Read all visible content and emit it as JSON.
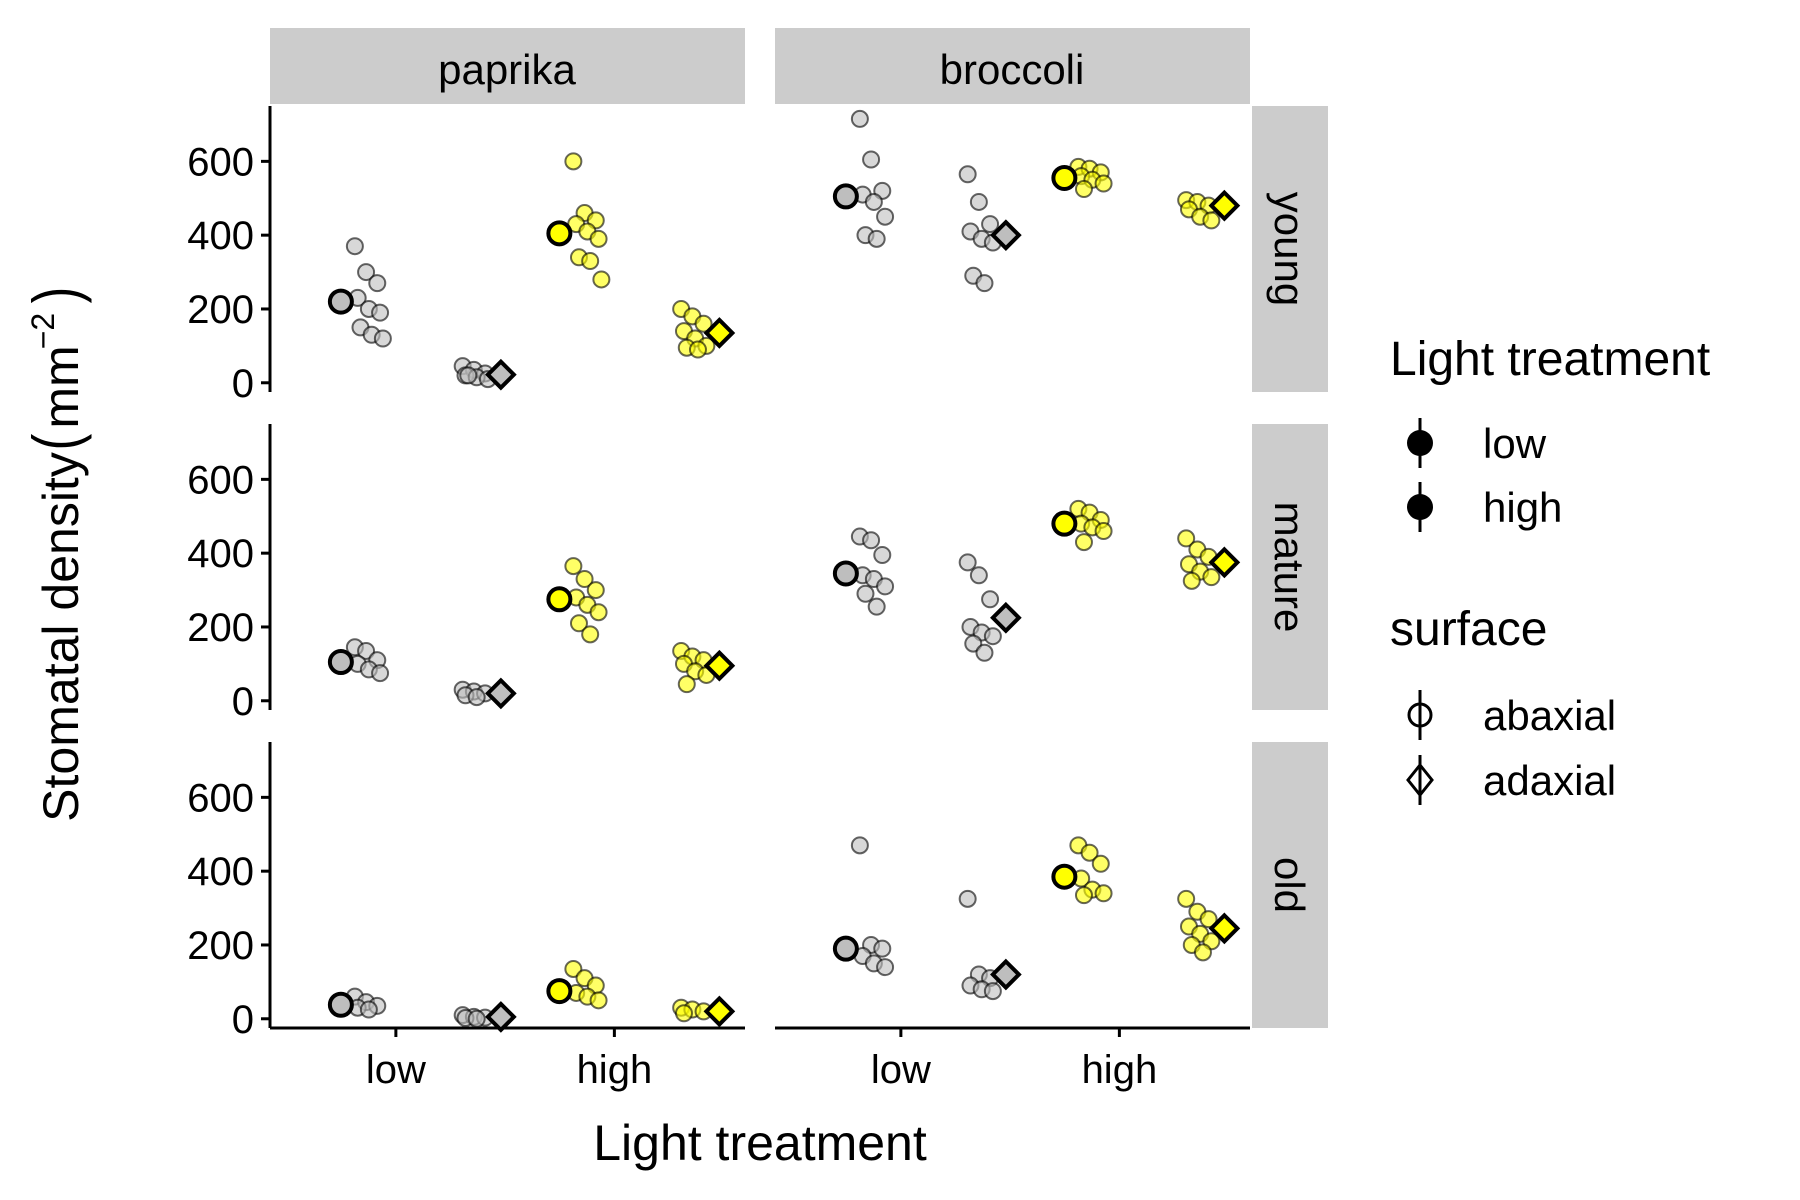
{
  "chart_data": {
    "type": "scatter",
    "xlabel": "Light treatment",
    "ylabel": "Stomatal density",
    "ylabel_unit_base": "mm",
    "ylabel_unit_exponent": "−2",
    "categories": [
      "low",
      "high"
    ],
    "ylim": [
      -25,
      750
    ],
    "yticks": [
      0,
      200,
      400,
      600
    ],
    "columns": [
      "paprika",
      "broccoli"
    ],
    "rows": [
      "young",
      "mature",
      "old"
    ],
    "colors": {
      "low": "#bebebe",
      "high": "#ffff00",
      "stroke": "#000000"
    },
    "legend": {
      "position": "right",
      "color_title": "Light treatment",
      "color_items": [
        "low",
        "high"
      ],
      "shape_title": "surface",
      "shape_items": [
        "abaxial",
        "adaxial"
      ]
    },
    "panels": [
      {
        "crop": "paprika",
        "age": "young",
        "groups": [
          {
            "light": "low",
            "surface": "abaxial",
            "mean": 220,
            "points": [
              370,
              300,
              270,
              230,
              200,
              190,
              150,
              130,
              120
            ]
          },
          {
            "light": "low",
            "surface": "adaxial",
            "mean": 22,
            "points": [
              45,
              35,
              25,
              20,
              15,
              10,
              20
            ]
          },
          {
            "light": "high",
            "surface": "abaxial",
            "mean": 405,
            "points": [
              600,
              460,
              440,
              430,
              410,
              390,
              340,
              330,
              280
            ]
          },
          {
            "light": "high",
            "surface": "adaxial",
            "mean": 135,
            "points": [
              200,
              180,
              160,
              140,
              120,
              100,
              95,
              90
            ]
          }
        ]
      },
      {
        "crop": "paprika",
        "age": "mature",
        "groups": [
          {
            "light": "low",
            "surface": "abaxial",
            "mean": 105,
            "points": [
              145,
              135,
              110,
              100,
              85,
              75
            ]
          },
          {
            "light": "low",
            "surface": "adaxial",
            "mean": 20,
            "points": [
              30,
              25,
              20,
              15,
              10
            ]
          },
          {
            "light": "high",
            "surface": "abaxial",
            "mean": 275,
            "points": [
              365,
              330,
              300,
              280,
              260,
              240,
              210,
              180
            ]
          },
          {
            "light": "high",
            "surface": "adaxial",
            "mean": 95,
            "points": [
              135,
              120,
              110,
              100,
              80,
              70,
              45
            ]
          }
        ]
      },
      {
        "crop": "paprika",
        "age": "old",
        "groups": [
          {
            "light": "low",
            "surface": "abaxial",
            "mean": 38,
            "points": [
              60,
              45,
              35,
              30,
              25
            ]
          },
          {
            "light": "low",
            "surface": "adaxial",
            "mean": 5,
            "points": [
              10,
              5,
              3,
              2,
              0
            ]
          },
          {
            "light": "high",
            "surface": "abaxial",
            "mean": 75,
            "points": [
              135,
              110,
              90,
              70,
              60,
              50
            ]
          },
          {
            "light": "high",
            "surface": "adaxial",
            "mean": 20,
            "points": [
              30,
              25,
              20,
              15
            ]
          }
        ]
      },
      {
        "crop": "broccoli",
        "age": "young",
        "groups": [
          {
            "light": "low",
            "surface": "abaxial",
            "mean": 505,
            "points": [
              715,
              605,
              520,
              510,
              490,
              450,
              400,
              390
            ]
          },
          {
            "light": "low",
            "surface": "adaxial",
            "mean": 400,
            "points": [
              565,
              490,
              430,
              410,
              390,
              380,
              290,
              270
            ]
          },
          {
            "light": "high",
            "surface": "abaxial",
            "mean": 555,
            "points": [
              585,
              580,
              570,
              560,
              550,
              540,
              525
            ]
          },
          {
            "light": "high",
            "surface": "adaxial",
            "mean": 480,
            "points": [
              495,
              490,
              480,
              470,
              450,
              440
            ]
          }
        ]
      },
      {
        "crop": "broccoli",
        "age": "mature",
        "groups": [
          {
            "light": "low",
            "surface": "abaxial",
            "mean": 345,
            "points": [
              445,
              435,
              395,
              340,
              330,
              310,
              290,
              255
            ]
          },
          {
            "light": "low",
            "surface": "adaxial",
            "mean": 225,
            "points": [
              375,
              340,
              275,
              200,
              185,
              175,
              155,
              130
            ]
          },
          {
            "light": "high",
            "surface": "abaxial",
            "mean": 480,
            "points": [
              520,
              510,
              490,
              480,
              470,
              460,
              430
            ]
          },
          {
            "light": "high",
            "surface": "adaxial",
            "mean": 375,
            "points": [
              440,
              410,
              390,
              370,
              350,
              335,
              325
            ]
          }
        ]
      },
      {
        "crop": "broccoli",
        "age": "old",
        "groups": [
          {
            "light": "low",
            "surface": "abaxial",
            "mean": 190,
            "points": [
              470,
              200,
              190,
              170,
              150,
              140
            ]
          },
          {
            "light": "low",
            "surface": "adaxial",
            "mean": 120,
            "points": [
              325,
              120,
              110,
              90,
              80,
              75
            ]
          },
          {
            "light": "high",
            "surface": "abaxial",
            "mean": 385,
            "points": [
              470,
              450,
              420,
              380,
              350,
              340,
              335
            ]
          },
          {
            "light": "high",
            "surface": "adaxial",
            "mean": 245,
            "points": [
              325,
              290,
              270,
              250,
              230,
              210,
              200,
              180
            ]
          }
        ]
      }
    ]
  }
}
